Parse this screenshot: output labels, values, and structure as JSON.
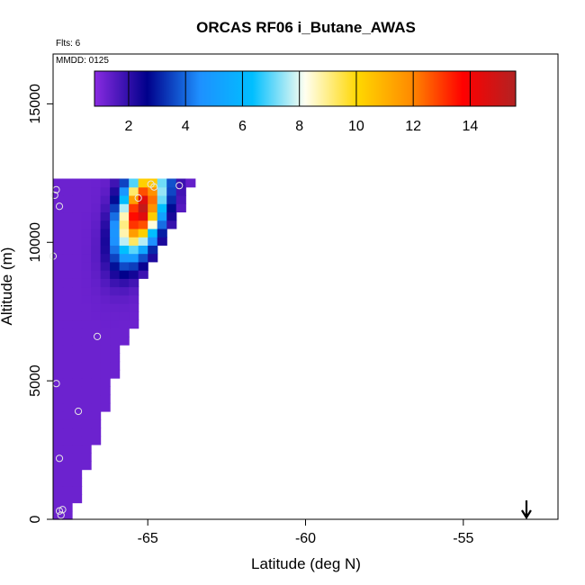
{
  "chart_data": {
    "type": "heatmap",
    "title": "ORCAS RF06 i_Butane_AWAS",
    "flights_label": "Flts: 6",
    "date_label": "MMDD: 0125",
    "xlabel": "Latitude (deg N)",
    "ylabel": "Altitude (m)",
    "xlim": [
      -68,
      -52
    ],
    "ylim": [
      0,
      16800
    ],
    "x_ticks": [
      -65,
      -60,
      -55
    ],
    "x_tick_labels": [
      "-65",
      "-60",
      "-55"
    ],
    "y_ticks": [
      0,
      5000,
      10000,
      15000
    ],
    "y_tick_labels": [
      "0",
      "5000",
      "10000",
      "15000"
    ],
    "colorbar": {
      "range": [
        0.8,
        15.6
      ],
      "ticks": [
        2,
        4,
        6,
        8,
        10,
        12,
        14
      ],
      "tick_labels": [
        "2",
        "4",
        "6",
        "8",
        "10",
        "12",
        "14"
      ],
      "colors": [
        "#8a2be2",
        "#00008b",
        "#1e90ff",
        "#00bfff",
        "#fffff0",
        "#ffd700",
        "#ff8c00",
        "#ff0000",
        "#b22222"
      ]
    },
    "cell_size": {
      "lat": 0.3,
      "alt": 300
    },
    "region": [
      {
        "alt": 12000,
        "lat_min": -68,
        "lat_max": -63.8
      },
      {
        "alt": 11000,
        "lat_min": -68,
        "lat_max": -64.2
      },
      {
        "alt": 10000,
        "lat_min": -68,
        "lat_max": -64.6
      },
      {
        "alt": 9000,
        "lat_min": -68,
        "lat_max": -65.2
      },
      {
        "alt": 8000,
        "lat_min": -68,
        "lat_max": -65.5
      },
      {
        "alt": 7000,
        "lat_min": -68,
        "lat_max": -65.6
      },
      {
        "alt": 6000,
        "lat_min": -68,
        "lat_max": -66.0
      },
      {
        "alt": 5000,
        "lat_min": -68,
        "lat_max": -66.2
      },
      {
        "alt": 4000,
        "lat_min": -68,
        "lat_max": -66.5
      },
      {
        "alt": 3000,
        "lat_min": -68,
        "lat_max": -66.7
      },
      {
        "alt": 2000,
        "lat_min": -68,
        "lat_max": -67.0
      },
      {
        "alt": 1000,
        "lat_min": -68,
        "lat_max": -67.3
      },
      {
        "alt": 0,
        "lat_min": -68,
        "lat_max": -67.5
      }
    ],
    "plume": {
      "center_lat": -65.2,
      "center_alt": 11200,
      "peak": 15.2,
      "sigma_lat": 0.45,
      "sigma_alt": 1100,
      "tilt_lat_per_m": 0.00022
    },
    "background_value": 1.2,
    "samples": [
      {
        "lat": -67.9,
        "alt": 11900
      },
      {
        "lat": -67.8,
        "alt": 11300
      },
      {
        "lat": -67.95,
        "alt": 11700
      },
      {
        "lat": -68.0,
        "alt": 9500
      },
      {
        "lat": -65.3,
        "alt": 11600
      },
      {
        "lat": -64.8,
        "alt": 12000
      },
      {
        "lat": -64.9,
        "alt": 12100
      },
      {
        "lat": -64.0,
        "alt": 12050
      },
      {
        "lat": -66.6,
        "alt": 6600
      },
      {
        "lat": -67.9,
        "alt": 4900
      },
      {
        "lat": -67.2,
        "alt": 3900
      },
      {
        "lat": -67.8,
        "alt": 2200
      },
      {
        "lat": -67.8,
        "alt": 300
      },
      {
        "lat": -67.7,
        "alt": 350
      },
      {
        "lat": -67.75,
        "alt": 150
      }
    ],
    "arrow_marker": {
      "lat": -53.0,
      "direction": "down"
    }
  }
}
